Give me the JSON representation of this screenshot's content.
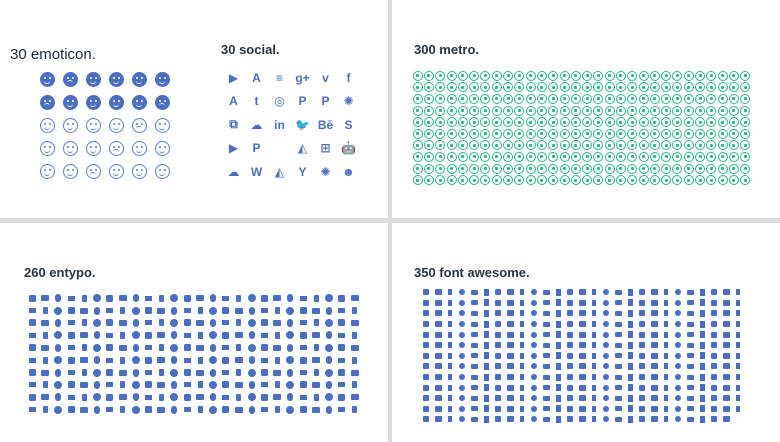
{
  "panels": {
    "emoticon": {
      "title": "30 emoticon.",
      "icon_name": "emoticon-face-icon",
      "solid_count": 12,
      "outline_count": 18,
      "color": "#4a6fc2"
    },
    "social": {
      "title": "30 social.",
      "color": "#4a6fc2",
      "glyphs": [
        "▶",
        "A",
        "≡",
        "g+",
        "v",
        "f",
        "A",
        "t",
        "◎",
        "P",
        "P",
        "✺",
        "⧉",
        "☁",
        "in",
        "🐦",
        "Bē",
        "S",
        "▶",
        "P",
        "",
        "◭",
        "⊞",
        "🤖",
        "☁",
        "W",
        "◭",
        "Y",
        "✺",
        "☻"
      ]
    },
    "metro": {
      "title": "300 metro.",
      "icon_name": "metro-circle-icon",
      "count": 300,
      "color": "#2bb58a"
    },
    "entypo": {
      "title": "260 entypo.",
      "icon_name": "entypo-glyph-icon",
      "count": 260,
      "color": "#4a6fc2"
    },
    "fontawesome": {
      "title": "350 font awesome.",
      "icon_name": "fontawesome-glyph-icon",
      "count": 350,
      "color": "#4a6fc2"
    }
  }
}
